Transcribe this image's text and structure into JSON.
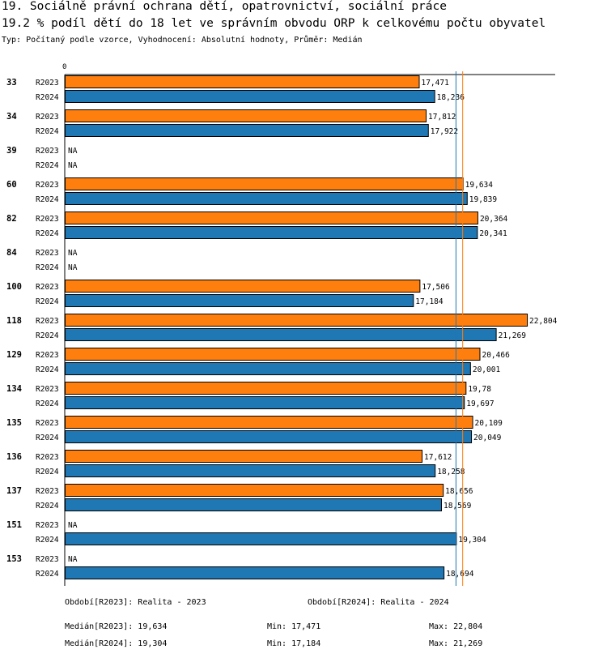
{
  "header": {
    "title": "19. Sociálně právní ochrana dětí, opatrovnictví, sociální práce",
    "subtitle": "19.2 % podíl dětí do 18 let ve správním obvodu ORP k celkovému počtu obyvatel",
    "info": "Typ: Počítaný podle vzorce, Vyhodnocení: Absolutní hodnoty, Průměr: Medián"
  },
  "chart_data": {
    "type": "bar",
    "orientation": "horizontal",
    "axis_zero_label": "0",
    "xlim": [
      0,
      24.2
    ],
    "na_label": "NA",
    "colors": {
      "R2023": "#ff7f0e",
      "R2024": "#1f77b4",
      "median_R2023": "#ff7f0e",
      "median_R2024": "#1f77b4"
    },
    "groups": [
      {
        "id": "33",
        "rows": [
          {
            "series": "R2023",
            "value": 17.471,
            "label": "17,471"
          },
          {
            "series": "R2024",
            "value": 18.236,
            "label": "18,236"
          }
        ]
      },
      {
        "id": "34",
        "rows": [
          {
            "series": "R2023",
            "value": 17.812,
            "label": "17,812"
          },
          {
            "series": "R2024",
            "value": 17.922,
            "label": "17,922"
          }
        ]
      },
      {
        "id": "39",
        "rows": [
          {
            "series": "R2023",
            "value": null,
            "label": "NA"
          },
          {
            "series": "R2024",
            "value": null,
            "label": "NA"
          }
        ]
      },
      {
        "id": "60",
        "rows": [
          {
            "series": "R2023",
            "value": 19.634,
            "label": "19,634"
          },
          {
            "series": "R2024",
            "value": 19.839,
            "label": "19,839"
          }
        ]
      },
      {
        "id": "82",
        "rows": [
          {
            "series": "R2023",
            "value": 20.364,
            "label": "20,364"
          },
          {
            "series": "R2024",
            "value": 20.341,
            "label": "20,341"
          }
        ]
      },
      {
        "id": "84",
        "rows": [
          {
            "series": "R2023",
            "value": null,
            "label": "NA"
          },
          {
            "series": "R2024",
            "value": null,
            "label": "NA"
          }
        ]
      },
      {
        "id": "100",
        "rows": [
          {
            "series": "R2023",
            "value": 17.506,
            "label": "17,506"
          },
          {
            "series": "R2024",
            "value": 17.184,
            "label": "17,184"
          }
        ]
      },
      {
        "id": "118",
        "rows": [
          {
            "series": "R2023",
            "value": 22.804,
            "label": "22,804"
          },
          {
            "series": "R2024",
            "value": 21.269,
            "label": "21,269"
          }
        ]
      },
      {
        "id": "129",
        "rows": [
          {
            "series": "R2023",
            "value": 20.466,
            "label": "20,466"
          },
          {
            "series": "R2024",
            "value": 20.001,
            "label": "20,001"
          }
        ]
      },
      {
        "id": "134",
        "rows": [
          {
            "series": "R2023",
            "value": 19.78,
            "label": "19,78"
          },
          {
            "series": "R2024",
            "value": 19.697,
            "label": "19,697"
          }
        ]
      },
      {
        "id": "135",
        "rows": [
          {
            "series": "R2023",
            "value": 20.109,
            "label": "20,109"
          },
          {
            "series": "R2024",
            "value": 20.049,
            "label": "20,049"
          }
        ]
      },
      {
        "id": "136",
        "rows": [
          {
            "series": "R2023",
            "value": 17.612,
            "label": "17,612"
          },
          {
            "series": "R2024",
            "value": 18.258,
            "label": "18,258"
          }
        ]
      },
      {
        "id": "137",
        "rows": [
          {
            "series": "R2023",
            "value": 18.656,
            "label": "18,656"
          },
          {
            "series": "R2024",
            "value": 18.569,
            "label": "18,569"
          }
        ]
      },
      {
        "id": "151",
        "rows": [
          {
            "series": "R2023",
            "value": null,
            "label": "NA"
          },
          {
            "series": "R2024",
            "value": 19.304,
            "label": "19,304"
          }
        ]
      },
      {
        "id": "153",
        "rows": [
          {
            "series": "R2023",
            "value": null,
            "label": "NA"
          },
          {
            "series": "R2024",
            "value": 18.694,
            "label": "18,694"
          }
        ]
      }
    ],
    "medians": {
      "R2023": 19.634,
      "R2024": 19.304
    }
  },
  "footer": {
    "period_2023": "Období[R2023]: Realita - 2023",
    "period_2024": "Období[R2024]: Realita - 2024",
    "median_2023": "Medián[R2023]: 19,634",
    "min_2023": "Min: 17,471",
    "max_2023": "Max: 22,804",
    "median_2024": "Medián[R2024]: 19,304",
    "min_2024": "Min: 17,184",
    "max_2024": "Max: 21,269"
  }
}
